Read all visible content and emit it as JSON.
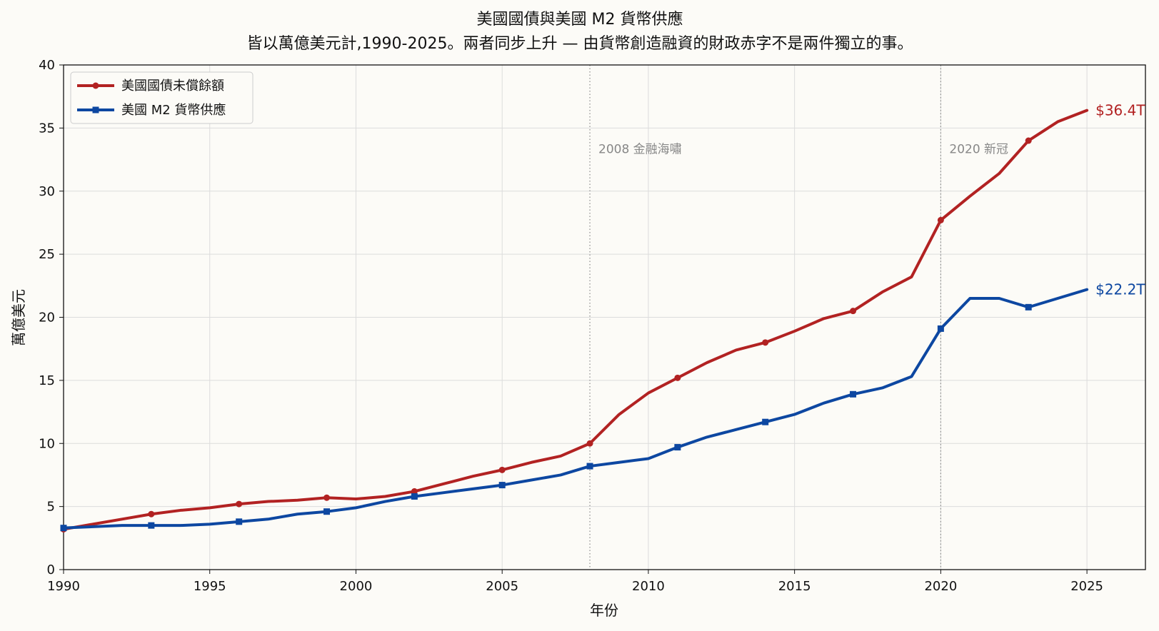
{
  "chart_data": {
    "type": "line",
    "title": "美國國債與美國 M2 貨幣供應",
    "subtitle": "皆以萬億美元計,1990-2025。兩者同步上升 — 由貨幣創造融資的財政赤字不是兩件獨立的事。",
    "xlabel": "年份",
    "ylabel": "萬億美元",
    "xlim": [
      1990,
      2027
    ],
    "ylim": [
      0,
      40
    ],
    "xticks": [
      1990,
      1995,
      2000,
      2005,
      2010,
      2015,
      2020,
      2025
    ],
    "yticks": [
      0,
      5,
      10,
      15,
      20,
      25,
      30,
      35,
      40
    ],
    "grid": true,
    "legend_placement": "top-left",
    "x": [
      1990,
      1991,
      1992,
      1993,
      1994,
      1995,
      1996,
      1997,
      1998,
      1999,
      2000,
      2001,
      2002,
      2003,
      2004,
      2005,
      2006,
      2007,
      2008,
      2009,
      2010,
      2011,
      2012,
      2013,
      2014,
      2015,
      2016,
      2017,
      2018,
      2019,
      2020,
      2021,
      2022,
      2023,
      2024,
      2025
    ],
    "series": [
      {
        "name": "美國國債未償餘額",
        "color": "#b22222",
        "marker": "circle",
        "marker_every": 3,
        "values": [
          3.2,
          3.6,
          4.0,
          4.4,
          4.7,
          4.9,
          5.2,
          5.4,
          5.5,
          5.7,
          5.6,
          5.8,
          6.2,
          6.8,
          7.4,
          7.9,
          8.5,
          9.0,
          10.0,
          12.3,
          14.0,
          15.2,
          16.4,
          17.4,
          18.0,
          18.9,
          19.9,
          20.5,
          22.0,
          23.2,
          27.7,
          29.6,
          31.4,
          34.0,
          35.5,
          36.4
        ],
        "end_label": "$36.4T"
      },
      {
        "name": "美國 M2 貨幣供應",
        "color": "#0d47a1",
        "marker": "square",
        "marker_every": 3,
        "values": [
          3.3,
          3.4,
          3.5,
          3.5,
          3.5,
          3.6,
          3.8,
          4.0,
          4.4,
          4.6,
          4.9,
          5.4,
          5.8,
          6.1,
          6.4,
          6.7,
          7.1,
          7.5,
          8.2,
          8.5,
          8.8,
          9.7,
          10.5,
          11.1,
          11.7,
          12.3,
          13.2,
          13.9,
          14.4,
          15.3,
          19.1,
          21.5,
          21.5,
          20.8,
          21.5,
          22.2
        ],
        "end_label": "$22.2T"
      }
    ],
    "annotations": [
      {
        "x": 2008,
        "label": "2008 金融海嘯"
      },
      {
        "x": 2020,
        "label": "2020 新冠"
      }
    ]
  }
}
